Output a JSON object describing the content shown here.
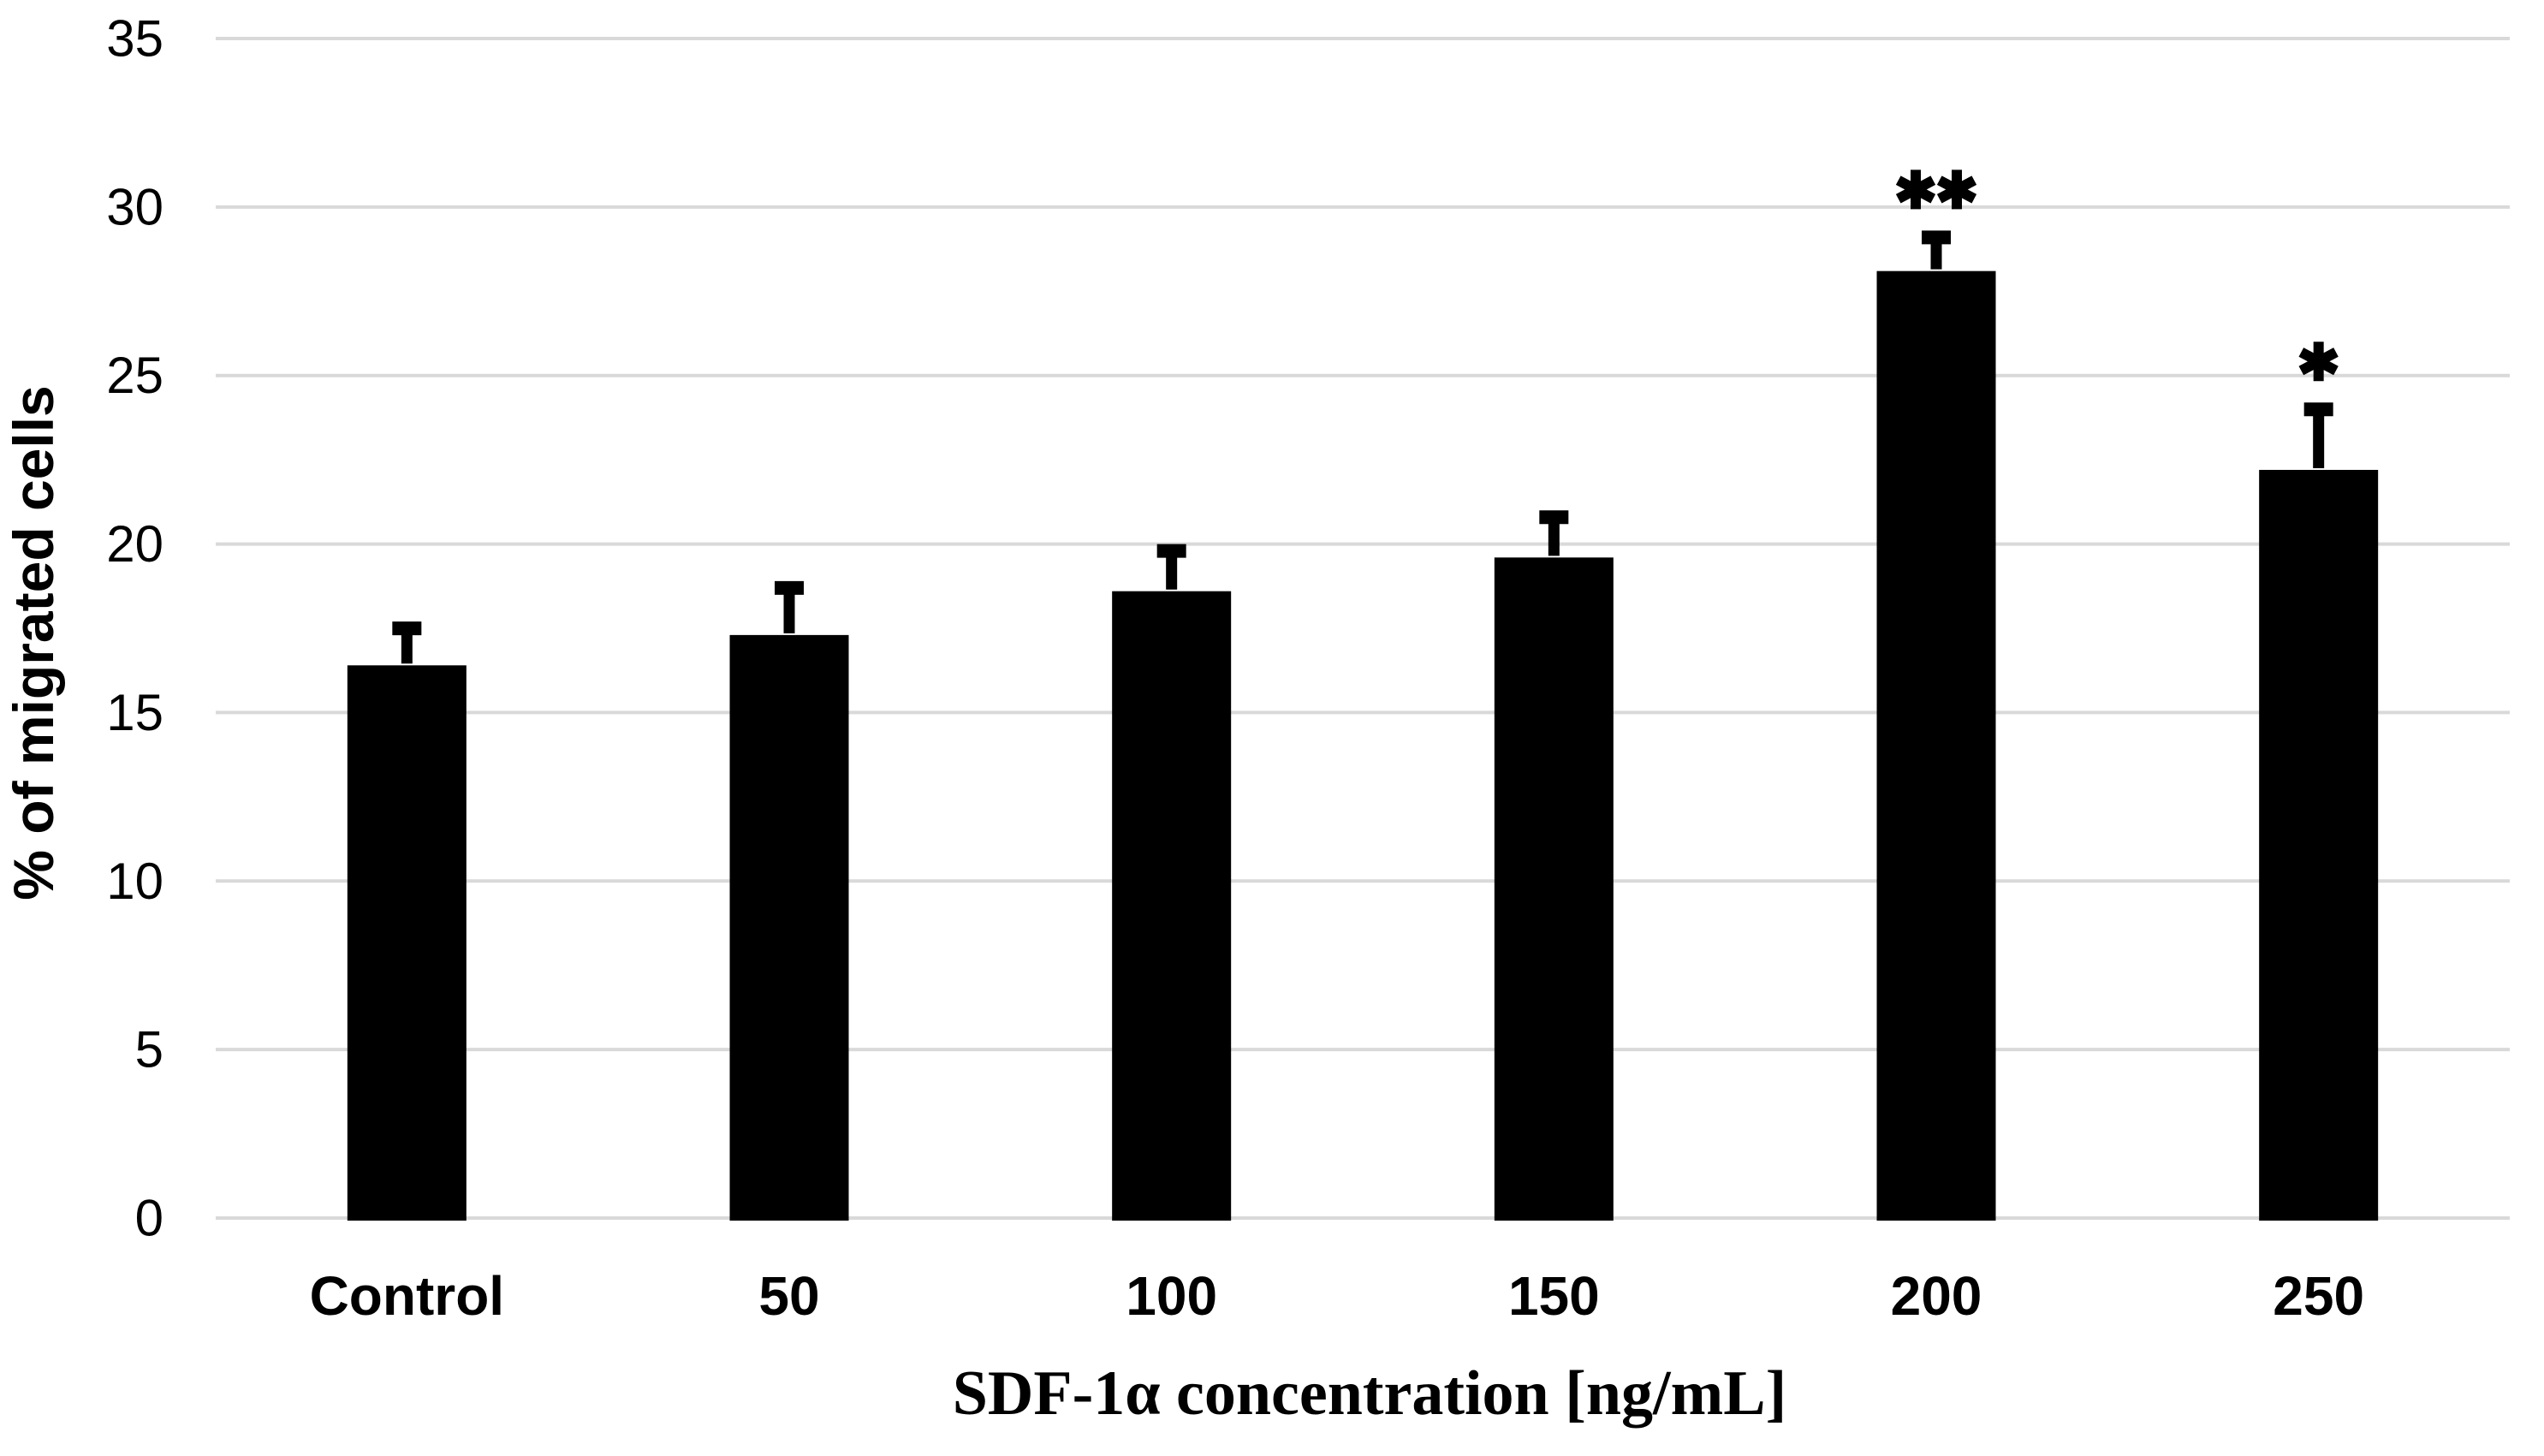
{
  "figure": {
    "background_color": "#ffffff"
  },
  "chart_data": {
    "type": "bar",
    "title": "",
    "categories": [
      "Control",
      "50",
      "100",
      "150",
      "200",
      "250"
    ],
    "values": [
      16.4,
      17.3,
      18.6,
      19.6,
      28.1,
      22.2
    ],
    "errors_plus": [
      1.3,
      1.6,
      1.4,
      1.4,
      1.2,
      2.0
    ],
    "significance": [
      "",
      "",
      "",
      "",
      "**",
      "*"
    ],
    "xlabel": "SDF-1α concentration [ng/mL]",
    "ylabel": "% of migrated cells",
    "ylim": [
      0,
      35
    ],
    "yticks": [
      0,
      5,
      10,
      15,
      20,
      25,
      30,
      35
    ],
    "bar_color": "#000000",
    "error_bar_color": "#000000",
    "gridline_color": "#d9d9d9",
    "text_color": "#000000",
    "grid": true,
    "legend_position": "none"
  }
}
